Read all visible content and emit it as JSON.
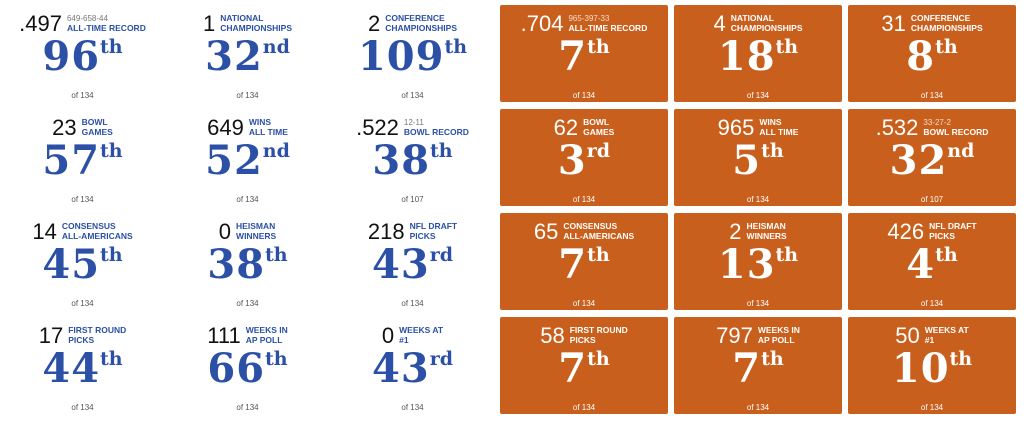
{
  "panels": [
    {
      "cells": [
        {
          "stat": ".497",
          "record": "649-658-44",
          "label": [
            "ALL-TIME RECORD"
          ],
          "rank": "96",
          "suffix": "th",
          "of": "of 134"
        },
        {
          "stat": "1",
          "label": [
            "NATIONAL",
            "CHAMPIONSHIPS"
          ],
          "rank": "32",
          "suffix": "nd",
          "of": "of 134"
        },
        {
          "stat": "2",
          "label": [
            "CONFERENCE",
            "CHAMPIONSHIPS"
          ],
          "rank": "109",
          "suffix": "th",
          "of": "of 134"
        },
        {
          "stat": "23",
          "label": [
            "BOWL",
            "GAMES"
          ],
          "rank": "57",
          "suffix": "th",
          "of": "of 134"
        },
        {
          "stat": "649",
          "label": [
            "WINS",
            "ALL TIME"
          ],
          "rank": "52",
          "suffix": "nd",
          "of": "of 134"
        },
        {
          "stat": ".522",
          "record": "12-11",
          "label": [
            "BOWL RECORD"
          ],
          "rank": "38",
          "suffix": "th",
          "of": "of 107"
        },
        {
          "stat": "14",
          "label": [
            "CONSENSUS",
            "ALL-AMERICANS"
          ],
          "rank": "45",
          "suffix": "th",
          "of": "of 134"
        },
        {
          "stat": "0",
          "label": [
            "HEISMAN",
            "WINNERS"
          ],
          "rank": "38",
          "suffix": "th",
          "of": "of 134"
        },
        {
          "stat": "218",
          "label": [
            "NFL DRAFT",
            "PICKS"
          ],
          "rank": "43",
          "suffix": "rd",
          "of": "of 134"
        },
        {
          "stat": "17",
          "label": [
            "FIRST ROUND",
            "PICKS"
          ],
          "rank": "44",
          "suffix": "th",
          "of": "of 134"
        },
        {
          "stat": "111",
          "label": [
            "WEEKS IN",
            "AP POLL"
          ],
          "rank": "66",
          "suffix": "th",
          "of": "of 134"
        },
        {
          "stat": "0",
          "label": [
            "WEEKS AT",
            "#1"
          ],
          "rank": "43",
          "suffix": "rd",
          "of": "of 134"
        }
      ]
    },
    {
      "cells": [
        {
          "stat": ".704",
          "record": "965-397-33",
          "label": [
            "ALL-TIME RECORD"
          ],
          "rank": "7",
          "suffix": "th",
          "of": "of 134"
        },
        {
          "stat": "4",
          "label": [
            "NATIONAL",
            "CHAMPIONSHIPS"
          ],
          "rank": "18",
          "suffix": "th",
          "of": "of 134"
        },
        {
          "stat": "31",
          "label": [
            "CONFERENCE",
            "CHAMPIONSHIPS"
          ],
          "rank": "8",
          "suffix": "th",
          "of": "of 134"
        },
        {
          "stat": "62",
          "label": [
            "BOWL",
            "GAMES"
          ],
          "rank": "3",
          "suffix": "rd",
          "of": "of 134"
        },
        {
          "stat": "965",
          "label": [
            "WINS",
            "ALL TIME"
          ],
          "rank": "5",
          "suffix": "th",
          "of": "of 134"
        },
        {
          "stat": ".532",
          "record": "33-27-2",
          "label": [
            "BOWL RECORD"
          ],
          "rank": "32",
          "suffix": "nd",
          "of": "of 107"
        },
        {
          "stat": "65",
          "label": [
            "CONSENSUS",
            "ALL-AMERICANS"
          ],
          "rank": "7",
          "suffix": "th",
          "of": "of 134"
        },
        {
          "stat": "2",
          "label": [
            "HEISMAN",
            "WINNERS"
          ],
          "rank": "13",
          "suffix": "th",
          "of": "of 134"
        },
        {
          "stat": "426",
          "label": [
            "NFL DRAFT",
            "PICKS"
          ],
          "rank": "4",
          "suffix": "th",
          "of": "of 134"
        },
        {
          "stat": "58",
          "label": [
            "FIRST ROUND",
            "PICKS"
          ],
          "rank": "7",
          "suffix": "th",
          "of": "of 134"
        },
        {
          "stat": "797",
          "label": [
            "WEEKS IN",
            "AP POLL"
          ],
          "rank": "7",
          "suffix": "th",
          "of": "of 134"
        },
        {
          "stat": "50",
          "label": [
            "WEEKS AT",
            "#1"
          ],
          "rank": "10",
          "suffix": "th",
          "of": "of 134"
        }
      ]
    }
  ]
}
